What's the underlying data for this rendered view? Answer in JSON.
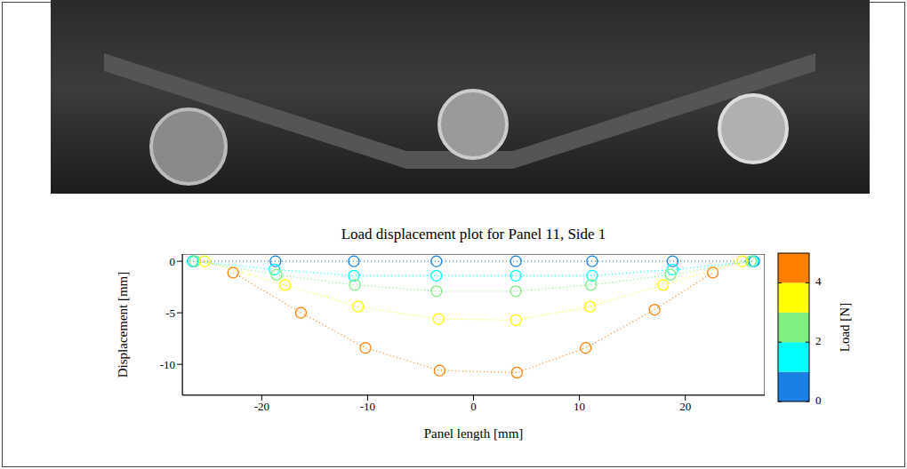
{
  "chart_data": {
    "type": "scatter",
    "title": "Load displacement plot for Panel 11, Side 1",
    "x_label": "Panel length [mm]",
    "y_label": "Displacement [mm]",
    "xlim": [
      -27.5,
      27.5
    ],
    "xticks": [
      -20,
      -10,
      0,
      10,
      20
    ],
    "ylim": [
      -13,
      0.7
    ],
    "yticks": [
      -10,
      -5,
      0
    ],
    "marker": "circle",
    "line_style": "dotted",
    "series": [
      {
        "load": 0.5,
        "x": [
          -26.5,
          -18.7,
          -11.3,
          -3.5,
          4,
          11.2,
          18.8,
          26.5
        ],
        "values": [
          0,
          0,
          0,
          0,
          0,
          0,
          0,
          0
        ]
      },
      {
        "load": 1.5,
        "x": [
          -26.5,
          -18.8,
          -11.3,
          -3.5,
          4,
          11.2,
          18.8,
          26.4
        ],
        "values": [
          0,
          -0.8,
          -1.4,
          -1.4,
          -1.4,
          -1.4,
          -0.8,
          0
        ]
      },
      {
        "load": 2.5,
        "x": [
          -26.3,
          -18.6,
          -11.2,
          -3.5,
          4,
          11.1,
          18.6,
          26.2
        ],
        "values": [
          0,
          -1.3,
          -2.3,
          -2.9,
          -2.9,
          -2.3,
          -1.3,
          0
        ]
      },
      {
        "load": 3.5,
        "x": [
          -25.4,
          -17.8,
          -10.9,
          -3.3,
          4,
          11,
          17.9,
          25.4
        ],
        "values": [
          0,
          -2.3,
          -4.4,
          -5.6,
          -5.7,
          -4.4,
          -2.3,
          0
        ]
      },
      {
        "load": 4.5,
        "x": [
          -22.7,
          -16.3,
          -10.2,
          -3.2,
          4.1,
          10.6,
          17.1,
          22.6
        ],
        "values": [
          -1.1,
          -5,
          -8.4,
          -10.6,
          -10.8,
          -8.4,
          -4.7,
          -1.1
        ]
      }
    ],
    "color_bar": {
      "label": "Load [N]",
      "range": [
        0,
        5
      ],
      "ticks": [
        0,
        2,
        4
      ],
      "colors": [
        "#1a80e6",
        "#00ffff",
        "#80ee80",
        "#ffff00",
        "#ff8000"
      ]
    }
  }
}
